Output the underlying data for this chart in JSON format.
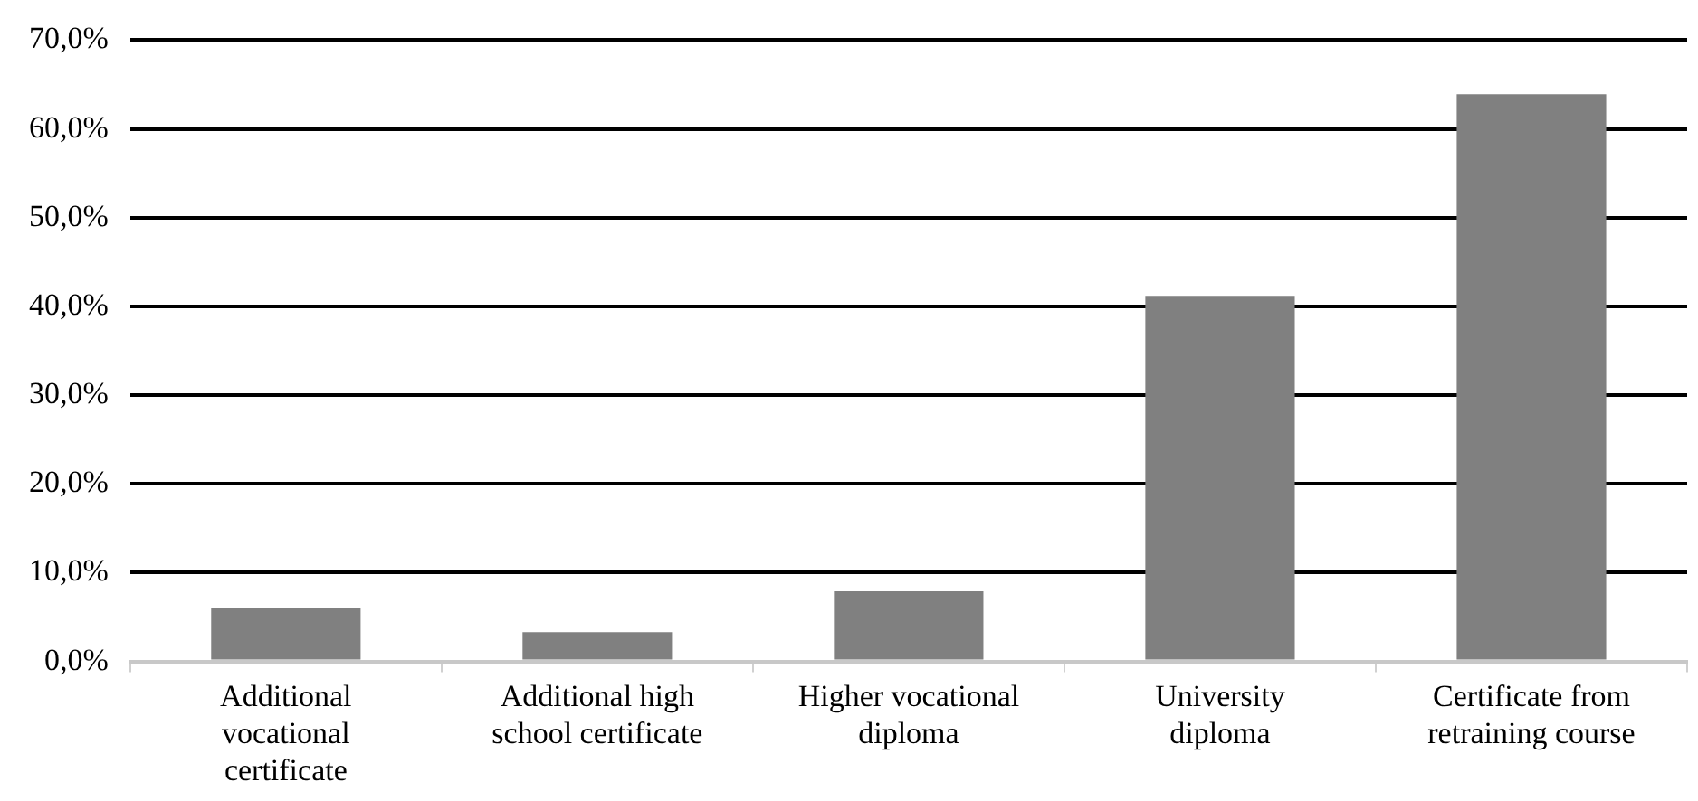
{
  "chart_data": {
    "type": "bar",
    "categories": [
      "Additional vocational certificate",
      "Additional high school certificate",
      "Higher vocational diploma",
      "University diploma",
      "Certificate from retraining course"
    ],
    "values": [
      6.0,
      3.3,
      7.9,
      41.2,
      63.9
    ],
    "color": "#808080",
    "ylim": [
      0,
      70
    ],
    "yticks": [
      {
        "value": 0,
        "label": "0,0%"
      },
      {
        "value": 10,
        "label": "10,0%"
      },
      {
        "value": 20,
        "label": "20,0%"
      },
      {
        "value": 30,
        "label": "30,0%"
      },
      {
        "value": 40,
        "label": "40,0%"
      },
      {
        "value": 50,
        "label": "50,0%"
      },
      {
        "value": 60,
        "label": "60,0%"
      },
      {
        "value": 70,
        "label": "70,0%"
      }
    ],
    "grid": "y"
  }
}
